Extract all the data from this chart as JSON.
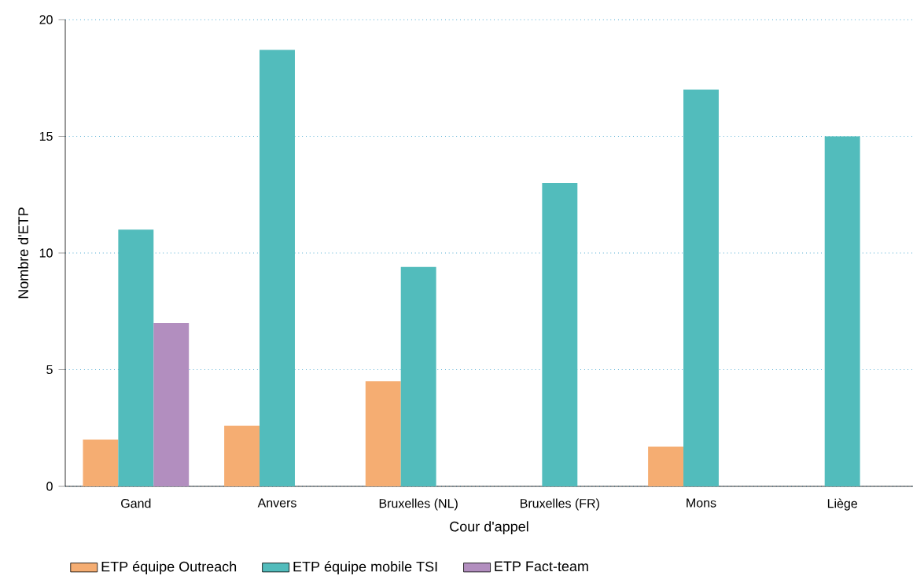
{
  "chart_data": {
    "type": "bar",
    "xlabel": "Cour d'appel",
    "ylabel": "Nombre d'ETP",
    "categories": [
      "Gand",
      "Anvers",
      "Bruxelles (NL)",
      "Bruxelles (FR)",
      "Mons",
      "Liège"
    ],
    "series": [
      {
        "name": "ETP équipe Outreach",
        "color": "#f5ad72",
        "values": [
          2,
          2.6,
          4.5,
          null,
          1.7,
          null
        ]
      },
      {
        "name": "ETP équipe mobile TSI",
        "color": "#52bcbc",
        "values": [
          11,
          18.7,
          9.4,
          13,
          17,
          15
        ]
      },
      {
        "name": "ETP Fact-team",
        "color": "#b28ebf",
        "values": [
          7,
          null,
          null,
          null,
          null,
          null
        ]
      }
    ],
    "ylim": [
      0,
      20
    ],
    "yticks": [
      0,
      5,
      10,
      15,
      20
    ],
    "grid": "y",
    "legend": "bottom"
  }
}
